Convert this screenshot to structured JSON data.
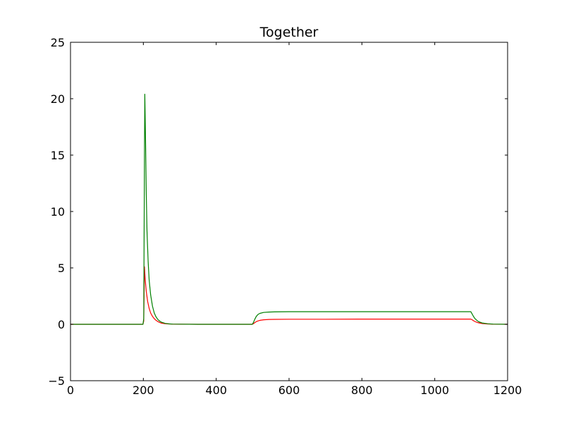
{
  "chart_data": {
    "type": "line",
    "title": "Together",
    "xlabel": "",
    "ylabel": "",
    "xlim": [
      0,
      1200
    ],
    "ylim": [
      -5,
      25
    ],
    "xticks": [
      0,
      200,
      400,
      600,
      800,
      1000,
      1200
    ],
    "yticks": [
      -5,
      0,
      5,
      10,
      15,
      20,
      25
    ],
    "xtick_labels": [
      "0",
      "200",
      "400",
      "600",
      "800",
      "1000",
      "1200"
    ],
    "ytick_labels": [
      "−5",
      "0",
      "5",
      "10",
      "15",
      "20",
      "25"
    ],
    "grid": false,
    "series": [
      {
        "color": "#ff0000",
        "x": [
          0,
          100,
          199,
          201,
          203,
          205,
          208,
          212,
          216,
          220,
          225,
          230,
          235,
          240,
          245,
          250,
          260,
          270,
          280,
          300,
          350,
          400,
          450,
          499,
          502,
          506,
          510,
          515,
          520,
          530,
          545,
          560,
          600,
          700,
          800,
          900,
          1000,
          1099,
          1102,
          1106,
          1110,
          1115,
          1120,
          1130,
          1145,
          1160,
          1200
        ],
        "y": [
          0,
          0,
          0,
          0.3,
          5.1,
          4.0,
          2.9,
          2.0,
          1.4,
          1.0,
          0.7,
          0.5,
          0.35,
          0.24,
          0.16,
          0.1,
          0.05,
          0.03,
          0.02,
          0.01,
          0,
          0,
          0,
          0,
          0.05,
          0.15,
          0.24,
          0.3,
          0.35,
          0.4,
          0.43,
          0.44,
          0.45,
          0.45,
          0.46,
          0.46,
          0.46,
          0.46,
          0.41,
          0.33,
          0.25,
          0.18,
          0.13,
          0.07,
          0.03,
          0.01,
          0
        ]
      },
      {
        "color": "#008000",
        "x": [
          0,
          100,
          199,
          201,
          203,
          204,
          206,
          208,
          210,
          213,
          216,
          220,
          225,
          230,
          235,
          240,
          245,
          250,
          260,
          270,
          280,
          300,
          350,
          400,
          450,
          499,
          502,
          506,
          510,
          515,
          520,
          530,
          545,
          560,
          600,
          700,
          800,
          900,
          1000,
          1099,
          1102,
          1106,
          1110,
          1115,
          1120,
          1130,
          1145,
          1160,
          1200
        ],
        "y": [
          0,
          0,
          0,
          0.5,
          15.0,
          20.4,
          16.5,
          11.5,
          8.3,
          5.6,
          3.9,
          2.6,
          1.6,
          1.0,
          0.65,
          0.42,
          0.28,
          0.18,
          0.08,
          0.04,
          0.02,
          0.01,
          0,
          0,
          0,
          0,
          0.15,
          0.45,
          0.7,
          0.88,
          0.97,
          1.05,
          1.09,
          1.1,
          1.12,
          1.12,
          1.12,
          1.12,
          1.12,
          1.12,
          0.95,
          0.72,
          0.52,
          0.36,
          0.24,
          0.12,
          0.05,
          0.02,
          0
        ]
      }
    ]
  }
}
